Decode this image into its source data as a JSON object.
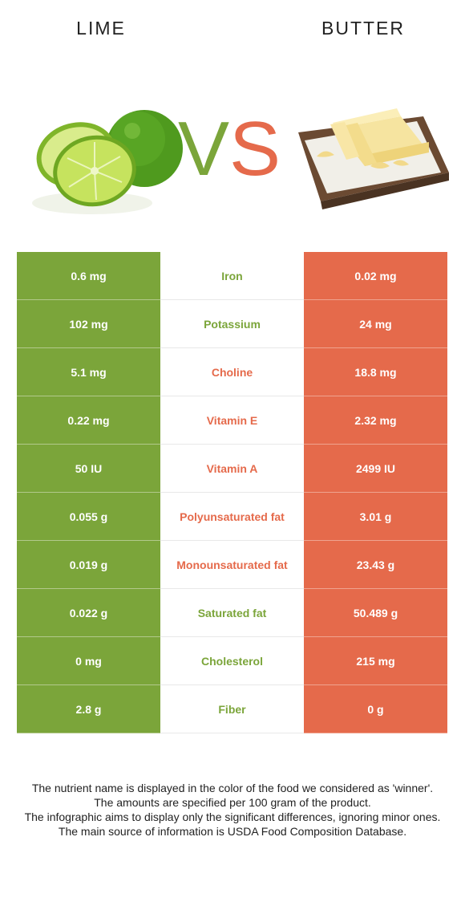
{
  "header": {
    "left_title": "LIME",
    "right_title": "BUTTER",
    "vs_v": "V",
    "vs_s": "S"
  },
  "colors": {
    "left": "#7ba53a",
    "right": "#e56a4b"
  },
  "rows": [
    {
      "left": "0.6 mg",
      "nutrient": "Iron",
      "right": "0.02 mg",
      "winner": "left"
    },
    {
      "left": "102 mg",
      "nutrient": "Potassium",
      "right": "24 mg",
      "winner": "left"
    },
    {
      "left": "5.1 mg",
      "nutrient": "Choline",
      "right": "18.8 mg",
      "winner": "right"
    },
    {
      "left": "0.22 mg",
      "nutrient": "Vitamin E",
      "right": "2.32 mg",
      "winner": "right"
    },
    {
      "left": "50 IU",
      "nutrient": "Vitamin A",
      "right": "2499 IU",
      "winner": "right"
    },
    {
      "left": "0.055 g",
      "nutrient": "Polyunsaturated fat",
      "right": "3.01 g",
      "winner": "right"
    },
    {
      "left": "0.019 g",
      "nutrient": "Monounsaturated fat",
      "right": "23.43 g",
      "winner": "right"
    },
    {
      "left": "0.022 g",
      "nutrient": "Saturated fat",
      "right": "50.489 g",
      "winner": "left"
    },
    {
      "left": "0 mg",
      "nutrient": "Cholesterol",
      "right": "215 mg",
      "winner": "left"
    },
    {
      "left": "2.8 g",
      "nutrient": "Fiber",
      "right": "0 g",
      "winner": "left"
    }
  ],
  "footer": {
    "line1": "The nutrient name is displayed in the color of the food we considered as 'winner'.",
    "line2": "The amounts are specified per 100 gram of the product.",
    "line3": "The infographic aims to display only the significant differences, ignoring minor ones.",
    "line4": "The main source of information is USDA Food Composition Database."
  }
}
